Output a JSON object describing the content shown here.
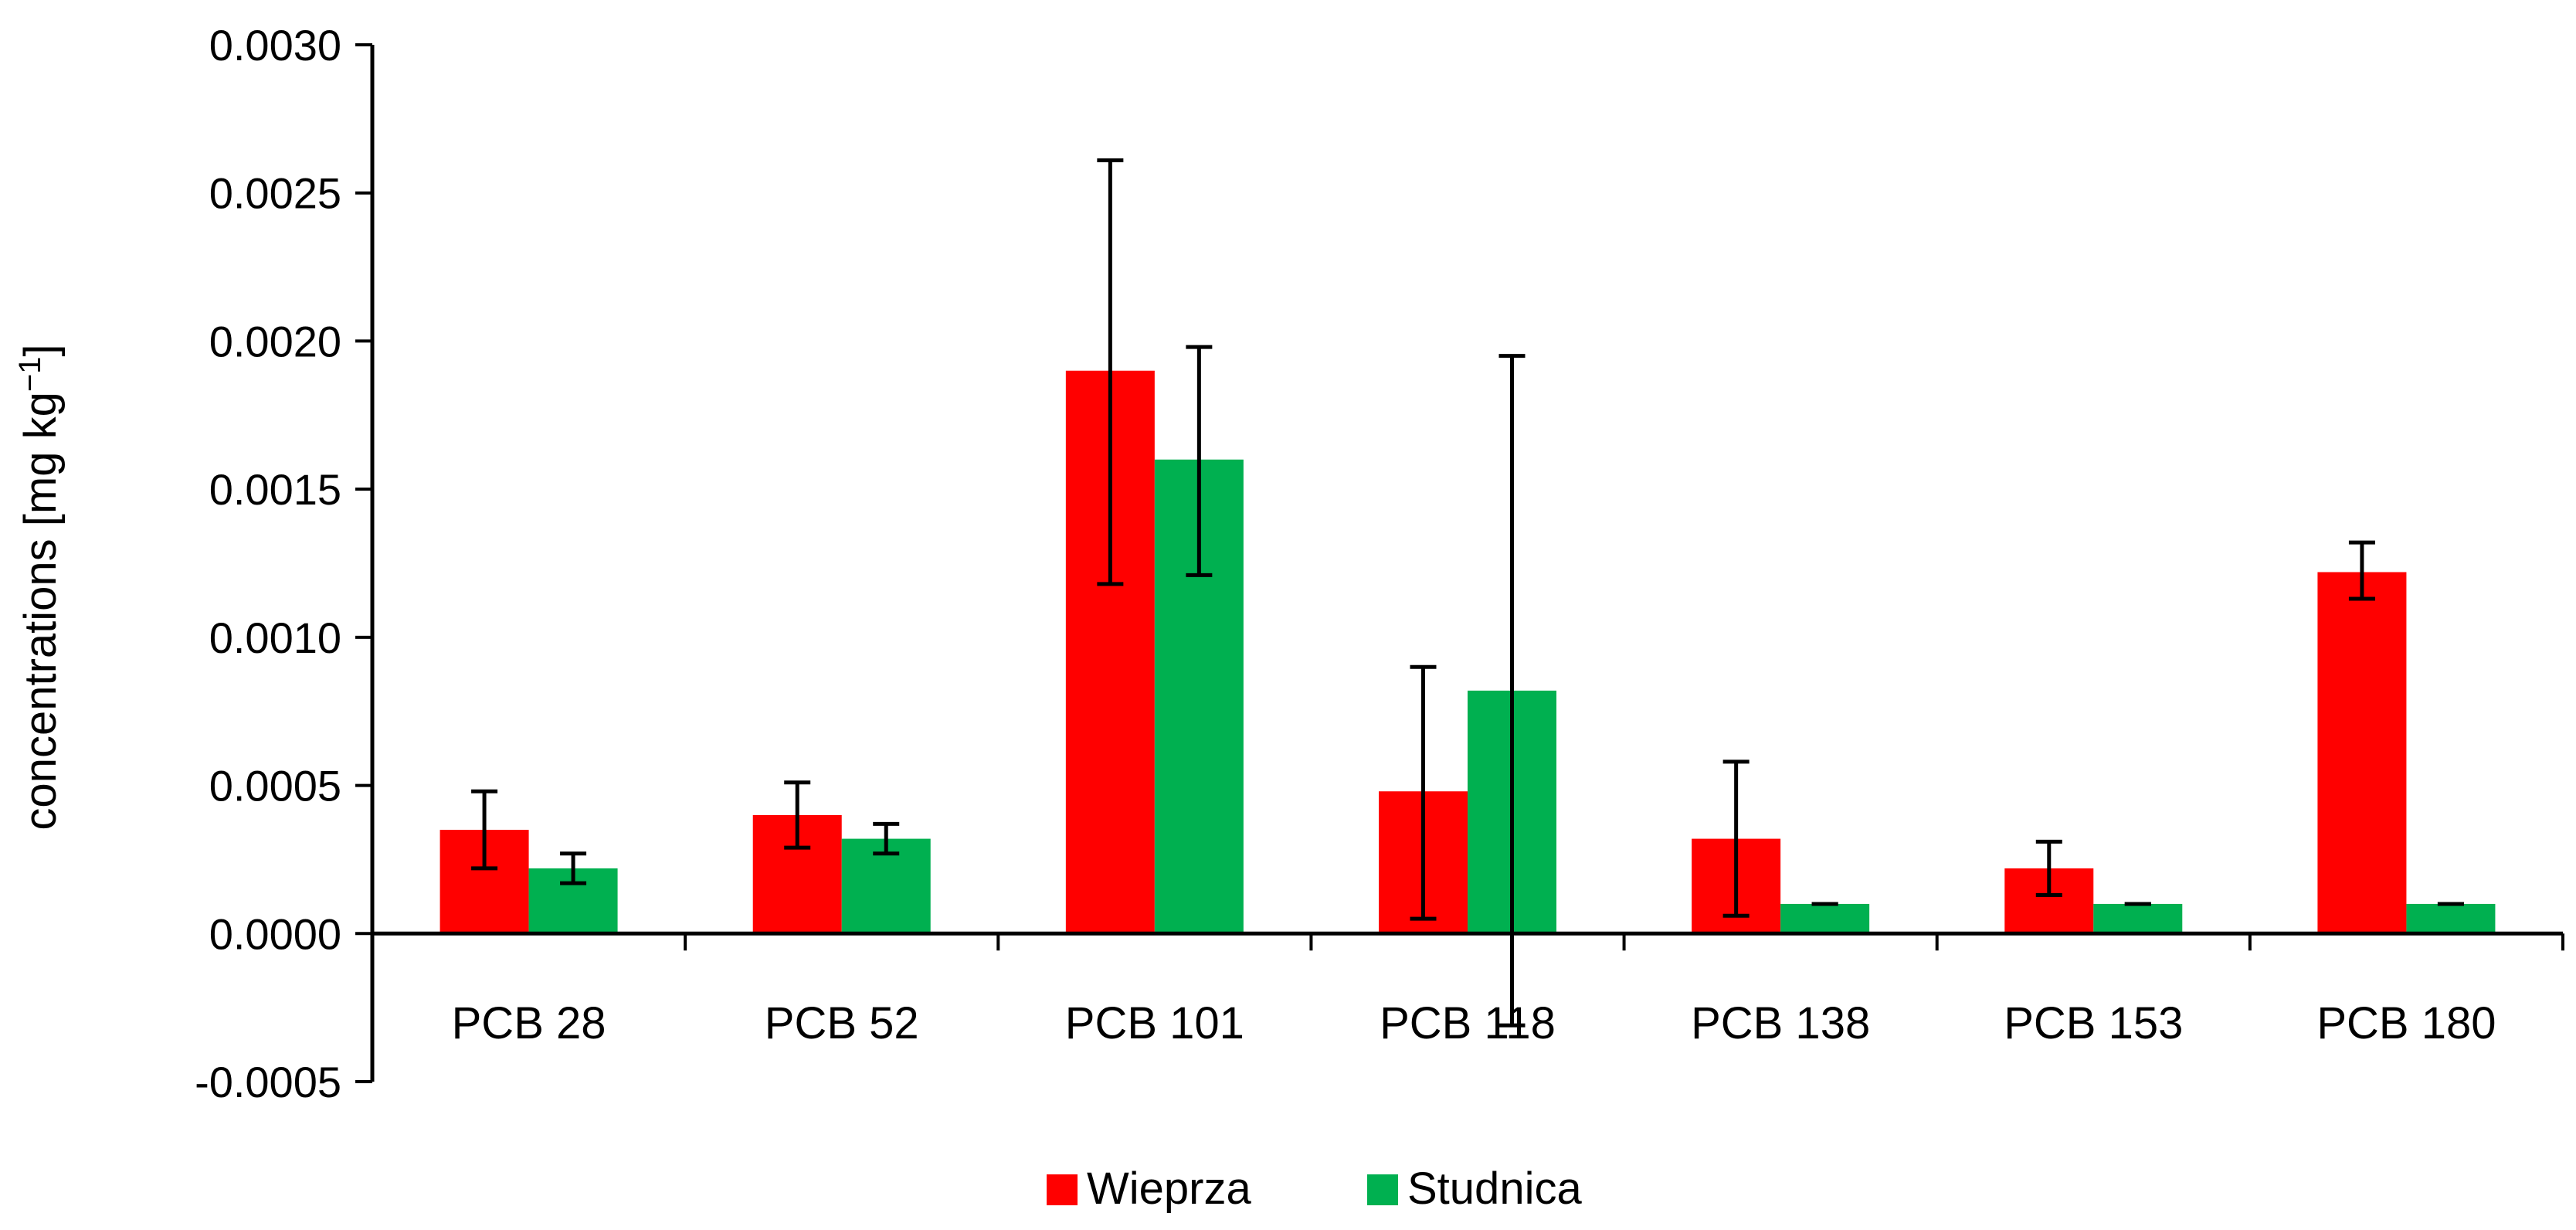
{
  "chart_data": {
    "type": "bar",
    "title": "",
    "xlabel": "",
    "ylabel": "concentrations [mg kg",
    "ylabel_sup": "−1",
    "ylabel_end": "]",
    "ylim": [
      -0.0005,
      0.003
    ],
    "yticks": [
      "-0.0005",
      "0.0000",
      "0.0005",
      "0.0010",
      "0.0015",
      "0.0020",
      "0.0025",
      "0.0030"
    ],
    "categories": [
      "PCB 28",
      "PCB 52",
      "PCB 101",
      "PCB 118",
      "PCB 138",
      "PCB 153",
      "PCB 180"
    ],
    "series": [
      {
        "name": "Wieprza",
        "color": "#ff0000",
        "values": [
          0.00035,
          0.0004,
          0.0019,
          0.00048,
          0.00032,
          0.00022,
          0.00122
        ],
        "error_low": [
          0.00022,
          0.00029,
          0.00118,
          5e-05,
          6e-05,
          0.00013,
          0.00113
        ],
        "error_high": [
          0.00048,
          0.00051,
          0.00261,
          0.0009,
          0.00058,
          0.00031,
          0.00132
        ]
      },
      {
        "name": "Studnica",
        "color": "#00b050",
        "values": [
          0.00022,
          0.00032,
          0.0016,
          0.00082,
          0.0001,
          0.0001,
          0.0001
        ],
        "error_low": [
          0.00017,
          0.00027,
          0.00121,
          -0.00031,
          0.0001,
          0.0001,
          0.0001
        ],
        "error_high": [
          0.00027,
          0.00037,
          0.00198,
          0.00195,
          0.0001,
          0.0001,
          0.0001
        ]
      }
    ],
    "legend": {
      "position": "bottom"
    }
  }
}
